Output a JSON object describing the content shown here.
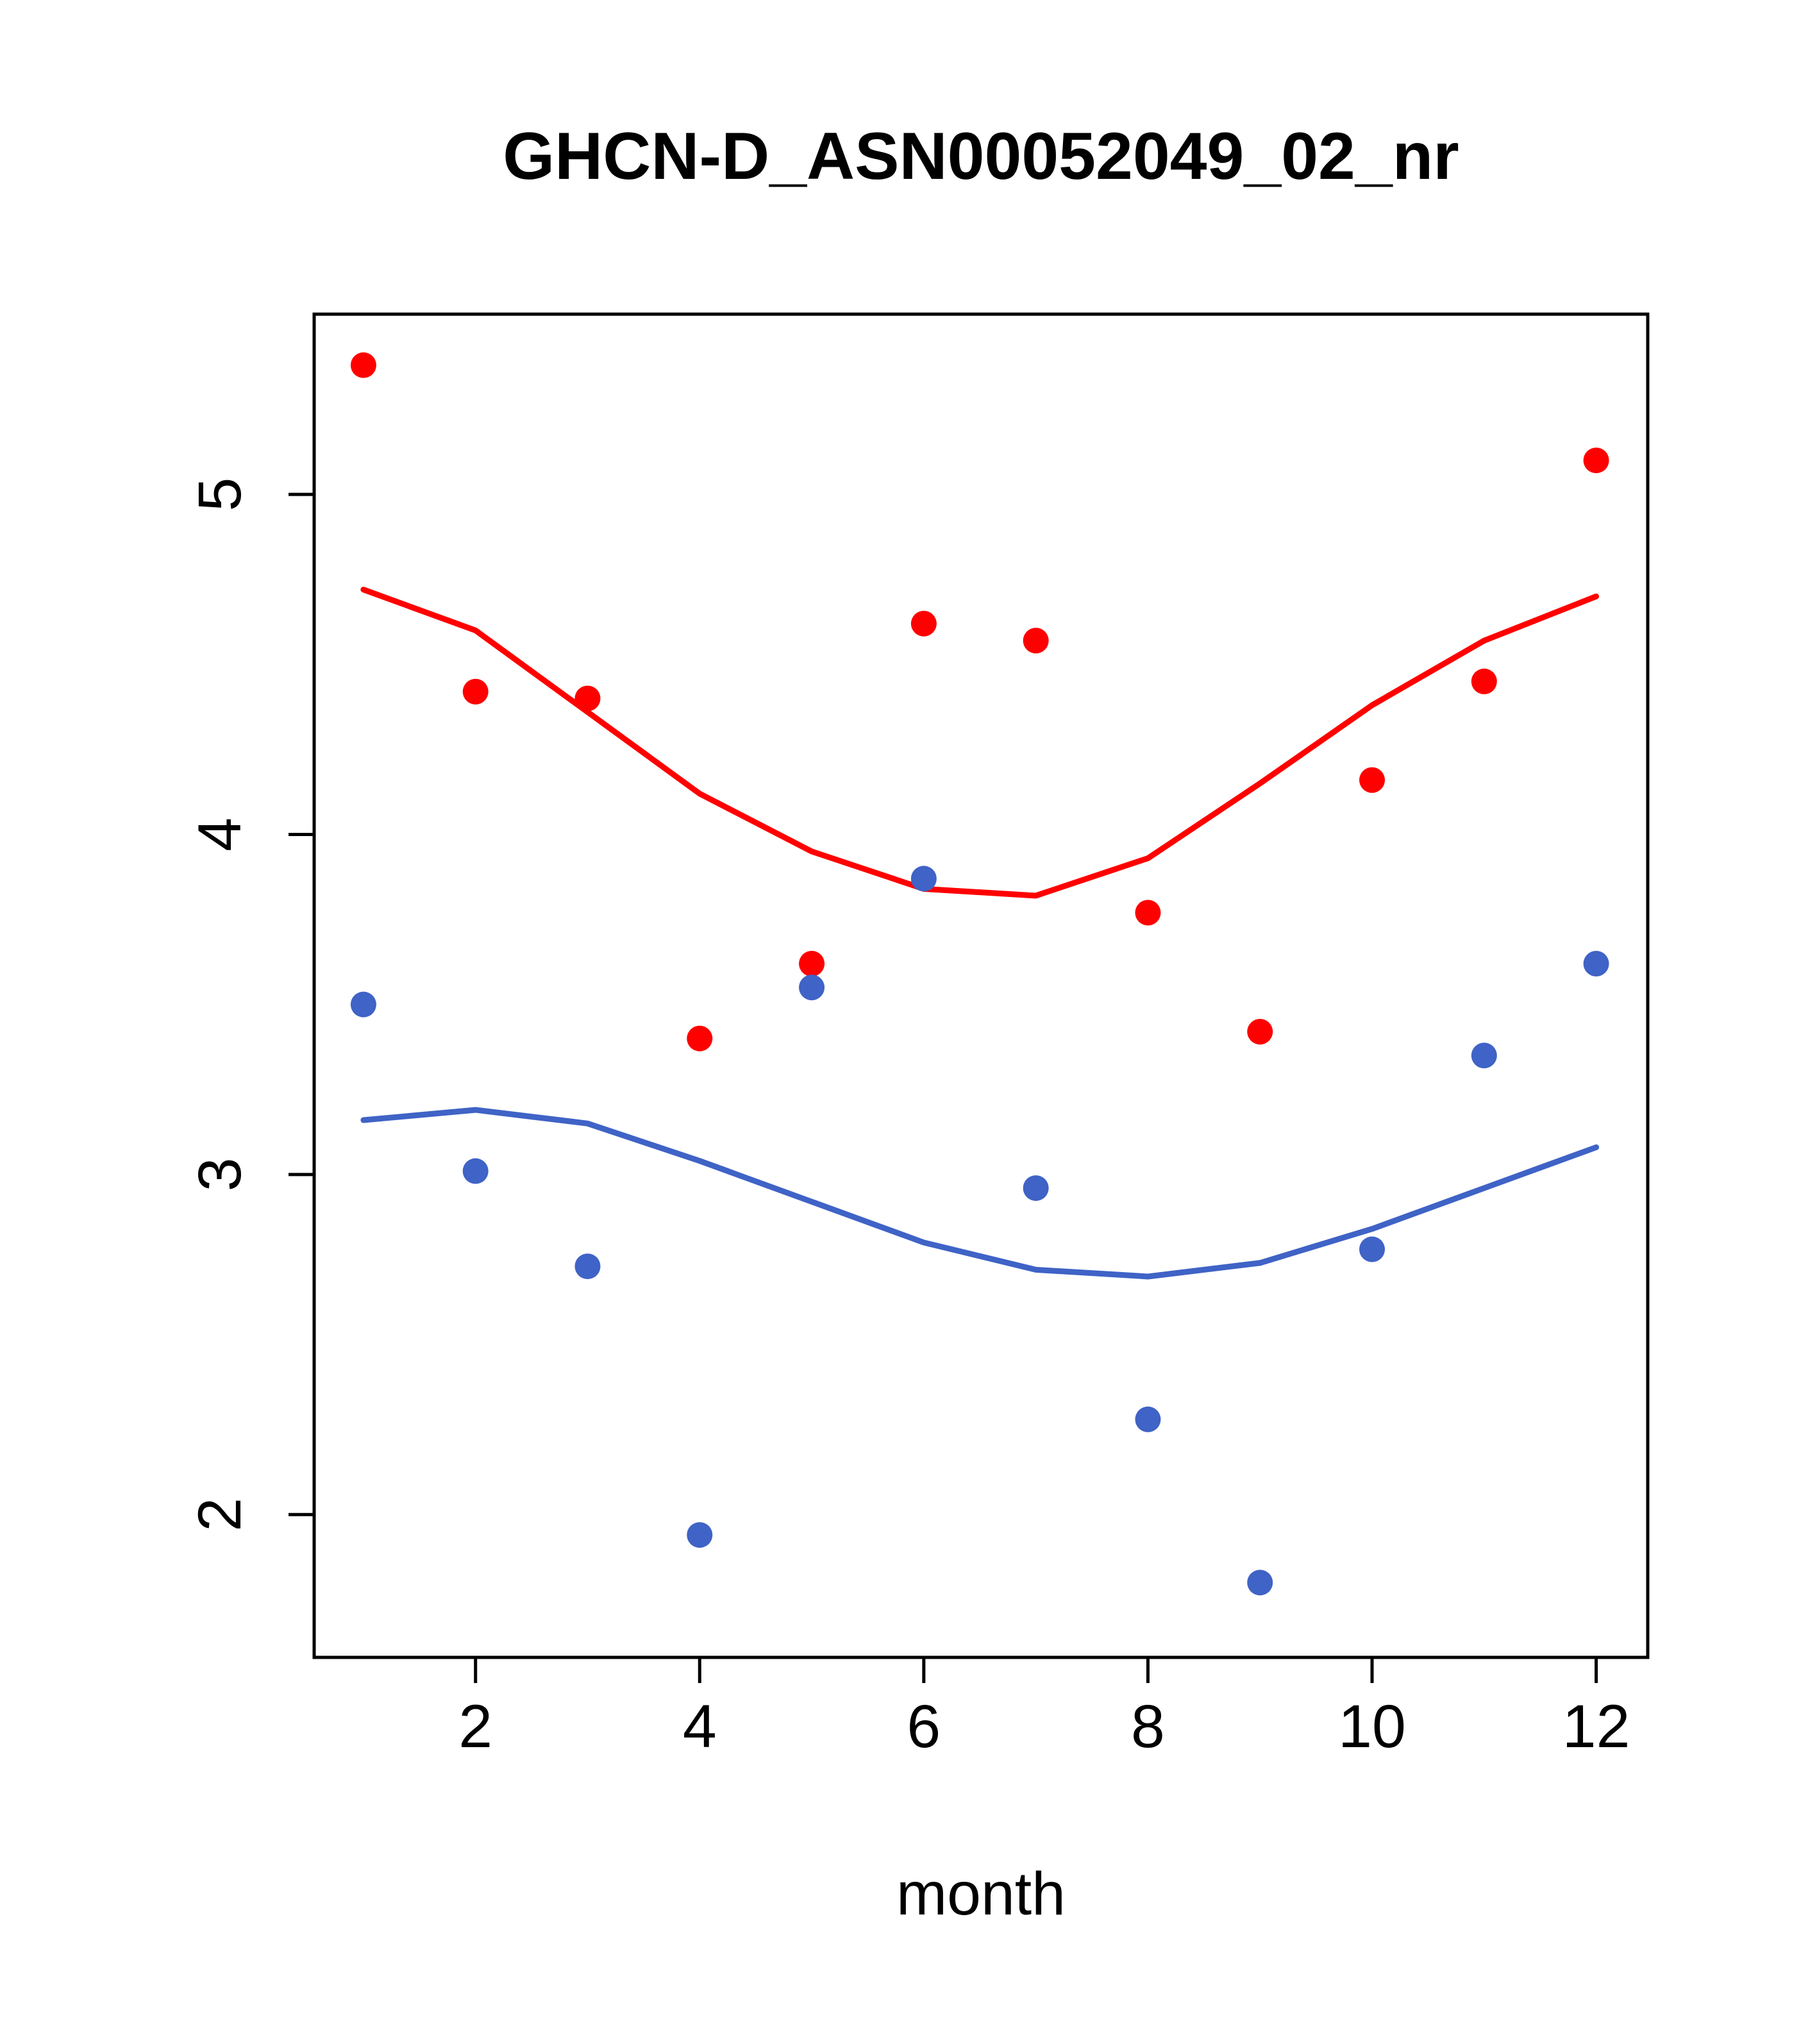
{
  "chart_data": {
    "type": "scatter",
    "title": "GHCN-D_ASN00052049_02_nr",
    "xlabel": "month",
    "ylabel": "",
    "xlim": [
      0.56,
      12.46
    ],
    "ylim": [
      1.58,
      5.53
    ],
    "x_ticks": [
      2,
      4,
      6,
      8,
      10,
      12
    ],
    "y_ticks": [
      2,
      3,
      4,
      5
    ],
    "grid": false,
    "legend": "none",
    "colors": {
      "red": "#ff0000",
      "blue": "#3f63c6"
    },
    "x": [
      1,
      2,
      3,
      4,
      5,
      6,
      7,
      8,
      9,
      10,
      11,
      12
    ],
    "series": [
      {
        "name": "red-points",
        "type": "points",
        "color": "red",
        "values": [
          5.38,
          4.42,
          4.4,
          3.4,
          3.62,
          4.62,
          4.57,
          3.77,
          3.42,
          4.16,
          4.45,
          5.1
        ]
      },
      {
        "name": "blue-points",
        "type": "points",
        "color": "blue",
        "values": [
          3.5,
          3.01,
          2.73,
          1.94,
          3.55,
          3.87,
          2.96,
          2.28,
          1.8,
          2.78,
          3.35,
          3.62
        ]
      },
      {
        "name": "red-smooth",
        "type": "line",
        "color": "red",
        "values": [
          4.72,
          4.6,
          4.36,
          4.12,
          3.95,
          3.84,
          3.82,
          3.93,
          4.15,
          4.38,
          4.57,
          4.7
        ]
      },
      {
        "name": "blue-smooth",
        "type": "line",
        "color": "blue",
        "values": [
          3.16,
          3.19,
          3.15,
          3.04,
          2.92,
          2.8,
          2.72,
          2.7,
          2.74,
          2.84,
          2.96,
          3.08
        ]
      }
    ]
  }
}
